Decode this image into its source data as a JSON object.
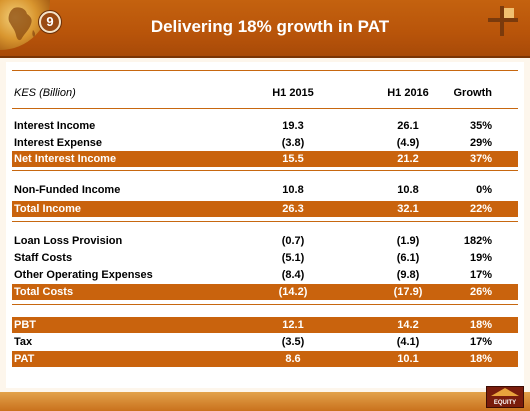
{
  "header": {
    "slide_number": "9",
    "title": "Delivering 18% growth in PAT"
  },
  "table": {
    "columns": [
      "KES (Billion)",
      "H1 2015",
      "H1 2016",
      "Growth"
    ],
    "rows": [
      {
        "label": "Interest Income",
        "h1_2015": "19.3",
        "h1_2016": "26.1",
        "growth": "35%",
        "highlight": false
      },
      {
        "label": "Interest Expense",
        "h1_2015": "(3.8)",
        "h1_2016": "(4.9)",
        "growth": "29%",
        "highlight": false
      },
      {
        "label": "Net Interest Income",
        "h1_2015": "15.5",
        "h1_2016": "21.2",
        "growth": "37%",
        "highlight": true
      },
      {
        "label": "Non-Funded Income",
        "h1_2015": "10.8",
        "h1_2016": "10.8",
        "growth": "0%",
        "highlight": false
      },
      {
        "label": "Total Income",
        "h1_2015": "26.3",
        "h1_2016": "32.1",
        "growth": "22%",
        "highlight": true
      },
      {
        "label": "Loan Loss Provision",
        "h1_2015": "(0.7)",
        "h1_2016": "(1.9)",
        "growth": "182%",
        "highlight": false
      },
      {
        "label": "Staff Costs",
        "h1_2015": "(5.1)",
        "h1_2016": "(6.1)",
        "growth": "19%",
        "highlight": false
      },
      {
        "label": "Other Operating Expenses",
        "h1_2015": "(8.4)",
        "h1_2016": "(9.8)",
        "growth": "17%",
        "highlight": false
      },
      {
        "label": "Total Costs",
        "h1_2015": "(14.2)",
        "h1_2016": "(17.9)",
        "growth": "26%",
        "highlight": true
      },
      {
        "label": "PBT",
        "h1_2015": "12.1",
        "h1_2016": "14.2",
        "growth": "18%",
        "highlight": true
      },
      {
        "label": "Tax",
        "h1_2015": "(3.5)",
        "h1_2016": "(4.1)",
        "growth": "17%",
        "highlight": false
      },
      {
        "label": "PAT",
        "h1_2015": "8.6",
        "h1_2016": "10.1",
        "growth": "18%",
        "highlight": true
      }
    ]
  },
  "footer": {
    "logo_text": "EQUITY"
  },
  "colors": {
    "accent": "#c9630d",
    "banner": "#b8540a",
    "background": "#fdf6ec"
  }
}
